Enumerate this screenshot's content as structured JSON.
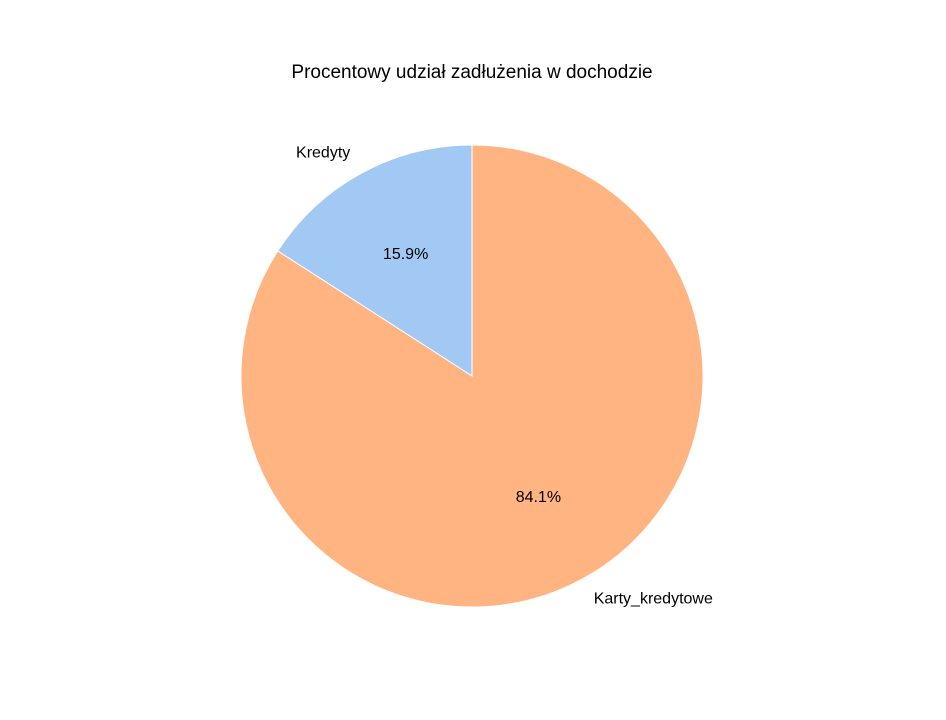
{
  "chart_data": {
    "type": "pie",
    "title": "Procentowy udział zadłużenia w dochodzie",
    "labels": [
      "Kredyty",
      "Karty_kredytowe"
    ],
    "values": [
      15.9,
      84.1
    ],
    "percent_labels": [
      "15.9%",
      "84.1%"
    ],
    "colors": [
      "#a1c9f4",
      "#ffb482"
    ],
    "start_angle_deg": 90,
    "direction": "counterclockwise"
  }
}
